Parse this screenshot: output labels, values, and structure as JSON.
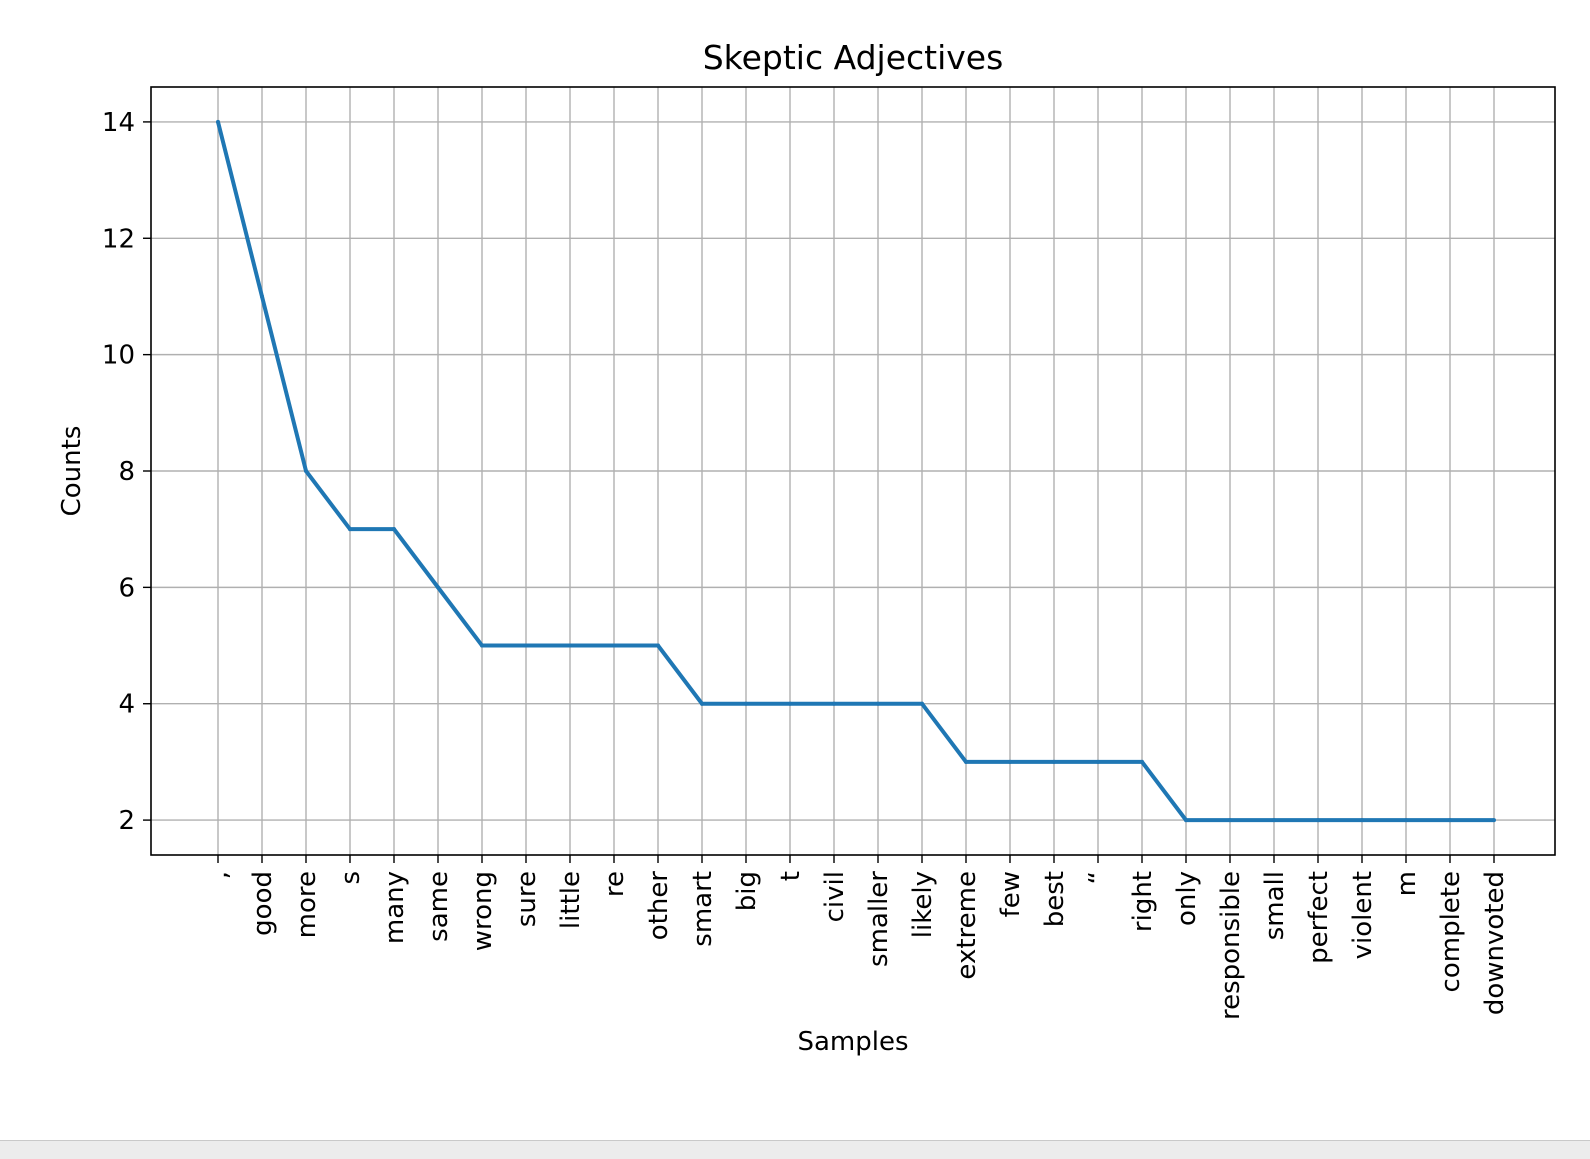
{
  "chart_data": {
    "type": "line",
    "title": "Skeptic Adjectives",
    "xlabel": "Samples",
    "ylabel": "Counts",
    "categories": [
      ",",
      "good",
      "more",
      "s",
      "many",
      "same",
      "wrong",
      "sure",
      "little",
      "re",
      "other",
      "smart",
      "big",
      "t",
      "civil",
      "smaller",
      "likely",
      "extreme",
      "few",
      "best",
      "“",
      "right",
      "only",
      "responsible",
      "small",
      "perfect",
      "violent",
      "m",
      "complete",
      "downvoted"
    ],
    "series": [
      {
        "values": [
          14,
          11,
          8,
          7,
          7,
          6,
          5,
          5,
          5,
          5,
          5,
          4,
          4,
          4,
          4,
          4,
          4,
          3,
          3,
          3,
          3,
          3,
          2,
          2,
          2,
          2,
          2,
          2,
          2,
          2
        ]
      }
    ],
    "ylim": [
      1.4,
      14.6
    ],
    "yticks": [
      2,
      4,
      6,
      8,
      10,
      12,
      14
    ],
    "grid": true,
    "line_color": "#1f77b4",
    "grid_color": "#b0b0b0"
  }
}
